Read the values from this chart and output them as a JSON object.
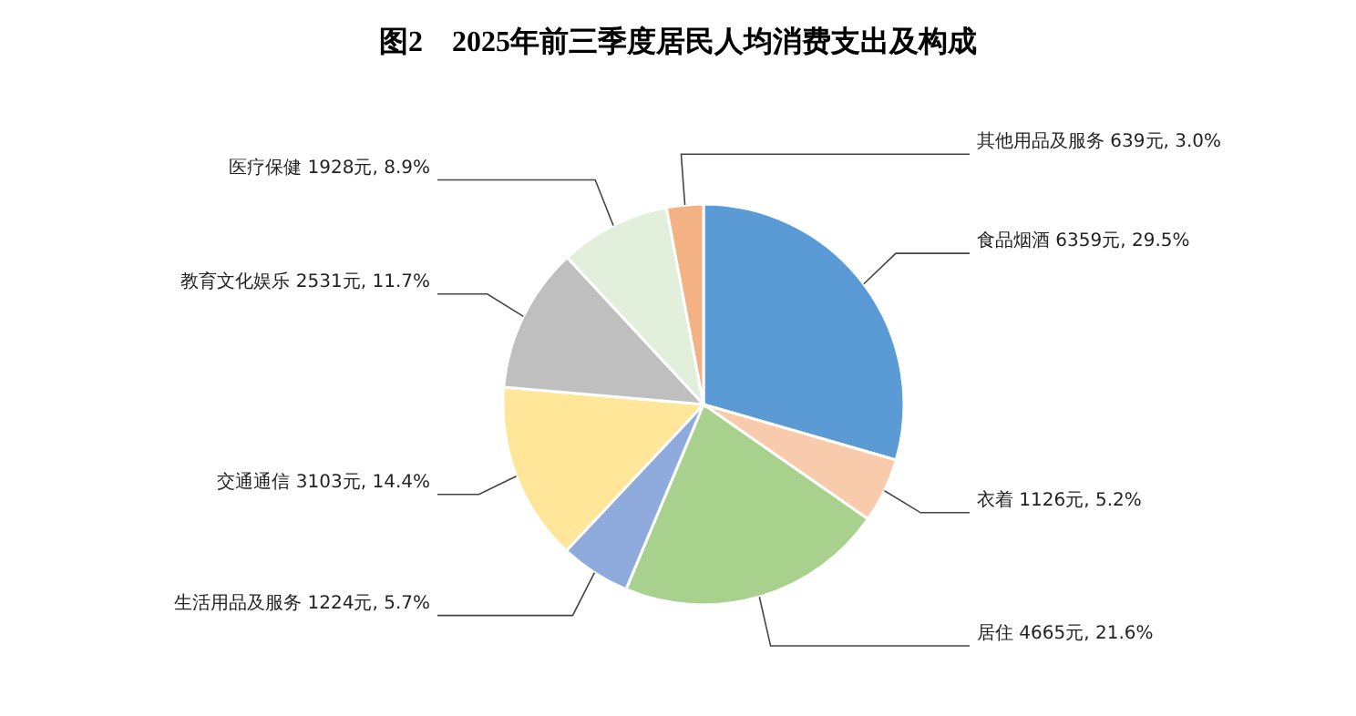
{
  "chart_data": {
    "type": "pie",
    "title": "图2　2025年前三季度居民人均消费支出及构成",
    "categories": [
      "食品烟酒",
      "衣着",
      "居住",
      "生活用品及服务",
      "交通通信",
      "教育文化娱乐",
      "医疗保健",
      "其他用品及服务"
    ],
    "values": [
      6359,
      1126,
      4665,
      1224,
      3103,
      2531,
      1928,
      639
    ],
    "value_labels": [
      "6359元, 29.5%",
      "1126元, 5.2%",
      "4665元, 21.6%",
      "1224元, 5.7%",
      "3103元, 14.4%",
      "2531元, 11.7%",
      "1928元, 8.9%",
      "639元, 3.0%"
    ],
    "colors": [
      "#5b9bd5",
      "#f8cbad",
      "#a9d18e",
      "#8faadc",
      "#ffe699",
      "#bfbfbf",
      "#e2efda",
      "#f4b183"
    ]
  }
}
